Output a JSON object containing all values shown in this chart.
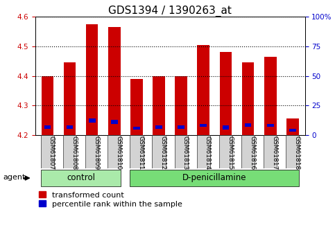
{
  "title": "GDS1394 / 1390263_at",
  "categories": [
    "GSM61807",
    "GSM61808",
    "GSM61809",
    "GSM61810",
    "GSM61811",
    "GSM61812",
    "GSM61813",
    "GSM61814",
    "GSM61815",
    "GSM61816",
    "GSM61817",
    "GSM61818"
  ],
  "groups": [
    "control",
    "control",
    "control",
    "control",
    "D-penicillamine",
    "D-penicillamine",
    "D-penicillamine",
    "D-penicillamine",
    "D-penicillamine",
    "D-penicillamine",
    "D-penicillamine",
    "D-penicillamine"
  ],
  "red_tops": [
    4.4,
    4.445,
    4.575,
    4.565,
    4.39,
    4.4,
    4.4,
    4.505,
    4.48,
    4.445,
    4.465,
    4.255
  ],
  "blue_bottoms": [
    4.222,
    4.222,
    4.243,
    4.237,
    4.218,
    4.222,
    4.222,
    4.228,
    4.218,
    4.228,
    4.228,
    4.212
  ],
  "blue_tops": [
    4.232,
    4.232,
    4.257,
    4.252,
    4.228,
    4.232,
    4.232,
    4.238,
    4.232,
    4.24,
    4.238,
    4.222
  ],
  "base": 4.2,
  "ylim_left": [
    4.2,
    4.6
  ],
  "ylim_right": [
    0,
    100
  ],
  "yticks_left": [
    4.2,
    4.3,
    4.4,
    4.5,
    4.6
  ],
  "yticks_right": [
    0,
    25,
    50,
    75,
    100
  ],
  "ytick_labels_right": [
    "0",
    "25",
    "50",
    "75",
    "100%"
  ],
  "red_color": "#cc0000",
  "blue_color": "#0000cc",
  "bar_width": 0.55,
  "grid_linestyle": "dotted",
  "grid_color": "black",
  "grid_linewidth": 0.8,
  "bg_plot": "#ffffff",
  "bg_xtick": "#d3d3d3",
  "control_color": "#aaeaaa",
  "dpen_color": "#77dd77",
  "legend_items": [
    "transformed count",
    "percentile rank within the sample"
  ],
  "agent_label": "agent",
  "left_yaxis_color": "#cc0000",
  "right_yaxis_color": "#0000cc",
  "title_fontsize": 11,
  "tick_fontsize": 7.5,
  "cat_fontsize": 6.5
}
